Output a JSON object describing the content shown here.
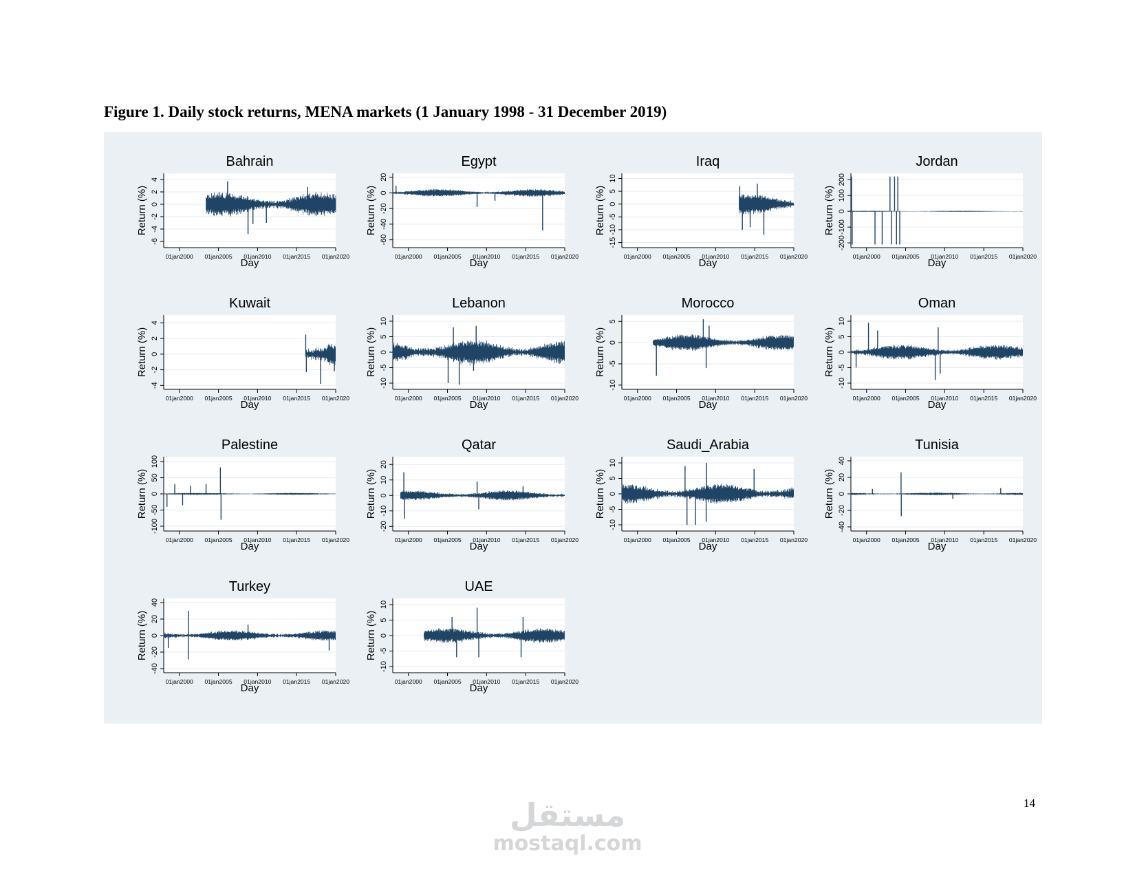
{
  "figure": {
    "title": "Figure 1. Daily stock returns, MENA markets (1 January 1998 - 31 December 2019)",
    "page_number": "14",
    "watermark": {
      "arabic": "مستقل",
      "latin": "mostaql.com"
    }
  },
  "colors": {
    "series": "#1f4466",
    "panel_bg": "#eaf0f3",
    "plot_bg": "#ffffff",
    "grid": "#e6ebee",
    "text": "#000000"
  },
  "chart_data": [
    {
      "type": "line",
      "title": "Bahrain",
      "xlabel": "Day",
      "ylabel": "Return (%)",
      "x_range": [
        "1998-01-01",
        "2019-12-31"
      ],
      "data_start": "2003-06-01",
      "x_ticks": [
        "01jan2000",
        "01jan2005",
        "01jan2010",
        "01jan2015",
        "01jan2020"
      ],
      "ylim": [
        -7,
        5
      ],
      "y_ticks": [
        4,
        2,
        0,
        -2,
        -4,
        -6
      ],
      "y_tick_labels": [
        "4",
        "2",
        "0",
        "-2",
        "-4",
        "-6"
      ],
      "typical_range": [
        -1,
        1.2
      ],
      "spikes": [
        [
          "2006-03-01",
          3.7
        ],
        [
          "2008-10-15",
          -4.8
        ],
        [
          "2009-06-01",
          -3.2
        ],
        [
          "2011-02-20",
          -3.0
        ],
        [
          "2016-06-01",
          2.8
        ]
      ]
    },
    {
      "type": "line",
      "title": "Egypt",
      "xlabel": "Day",
      "ylabel": "Return (%)",
      "x_range": [
        "1998-01-01",
        "2019-12-31"
      ],
      "data_start": "1998-01-01",
      "x_ticks": [
        "01jan2000",
        "01jan2005",
        "01jan2010",
        "01jan2015",
        "01jan2020"
      ],
      "ylim": [
        -70,
        25
      ],
      "y_ticks": [
        20,
        0,
        -20,
        -40,
        -60
      ],
      "y_tick_labels": [
        "20",
        "0",
        "-20",
        "-40",
        "-60"
      ],
      "typical_range": [
        -3,
        3
      ],
      "spikes": [
        [
          "1998-06-01",
          9
        ],
        [
          "2008-10-15",
          -18
        ],
        [
          "2011-01-28",
          -10
        ],
        [
          "2017-03-01",
          -48
        ]
      ]
    },
    {
      "type": "line",
      "title": "Iraq",
      "xlabel": "Day",
      "ylabel": "Return (%)",
      "x_range": [
        "1998-01-01",
        "2019-12-31"
      ],
      "data_start": "2013-01-01",
      "x_ticks": [
        "01jan2000",
        "01jan2005",
        "01jan2010",
        "01jan2015",
        "01jan2020"
      ],
      "ylim": [
        -17,
        12
      ],
      "y_ticks": [
        10,
        5,
        0,
        -5,
        -10,
        -15
      ],
      "y_tick_labels": [
        "10",
        "5",
        "0",
        "-5",
        "-10",
        "-15"
      ],
      "typical_range": [
        -2.5,
        2.5
      ],
      "spikes": [
        [
          "2013-02-01",
          7
        ],
        [
          "2013-06-01",
          -10
        ],
        [
          "2014-06-01",
          -9
        ],
        [
          "2015-05-01",
          8
        ],
        [
          "2016-03-01",
          -12
        ]
      ]
    },
    {
      "type": "line",
      "title": "Jordan",
      "xlabel": "Day",
      "ylabel": "Return (%)",
      "x_range": [
        "1998-01-01",
        "2019-12-31"
      ],
      "data_start": "1998-01-01",
      "x_ticks": [
        "01jan2000",
        "01jan2005",
        "01jan2010",
        "01jan2015",
        "01jan2020"
      ],
      "ylim": [
        -230,
        240
      ],
      "y_ticks": [
        200,
        100,
        0,
        -100,
        -200
      ],
      "y_tick_labels": [
        "200",
        "100",
        "0",
        "-100",
        "-200"
      ],
      "typical_range": [
        -2,
        2
      ],
      "spikes": [
        [
          "1998-02-01",
          220
        ],
        [
          "1998-03-01",
          -210
        ],
        [
          "2001-02-01",
          -210
        ],
        [
          "2002-01-01",
          -210
        ],
        [
          "2003-01-01",
          220
        ],
        [
          "2003-03-01",
          -210
        ],
        [
          "2003-08-01",
          220
        ],
        [
          "2003-11-01",
          -210
        ],
        [
          "2004-01-01",
          220
        ],
        [
          "2004-04-01",
          -210
        ]
      ]
    },
    {
      "type": "line",
      "title": "Kuwait",
      "xlabel": "Day",
      "ylabel": "Return (%)",
      "x_range": [
        "1998-01-01",
        "2019-12-31"
      ],
      "data_start": "2016-03-01",
      "x_ticks": [
        "01jan2000",
        "01jan2005",
        "01jan2010",
        "01jan2015",
        "01jan2020"
      ],
      "ylim": [
        -4.5,
        5
      ],
      "y_ticks": [
        4,
        2,
        0,
        -2,
        -4
      ],
      "y_tick_labels": [
        "4",
        "2",
        "0",
        "-2",
        "-4"
      ],
      "typical_range": [
        -1.2,
        1.3
      ],
      "spikes": [
        [
          "2016-03-01",
          2.5
        ],
        [
          "2016-04-01",
          -2.3
        ],
        [
          "2018-02-01",
          -3.8
        ],
        [
          "2019-11-01",
          -2.2
        ]
      ]
    },
    {
      "type": "line",
      "title": "Lebanon",
      "xlabel": "Day",
      "ylabel": "Return (%)",
      "x_range": [
        "1998-01-01",
        "2019-12-31"
      ],
      "data_start": "1998-01-01",
      "x_ticks": [
        "01jan2000",
        "01jan2005",
        "01jan2010",
        "01jan2015",
        "01jan2020"
      ],
      "ylim": [
        -12,
        12
      ],
      "y_ticks": [
        10,
        5,
        0,
        -5,
        -10
      ],
      "y_tick_labels": [
        "10",
        "5",
        "0",
        "-5",
        "-10"
      ],
      "typical_range": [
        -2.5,
        2.5
      ],
      "spikes": [
        [
          "2005-02-01",
          -10
        ],
        [
          "2005-10-01",
          8
        ],
        [
          "2006-07-01",
          -10.5
        ],
        [
          "2008-09-01",
          8.5
        ],
        [
          "2008-05-01",
          -6
        ]
      ]
    },
    {
      "type": "line",
      "title": "Morocco",
      "xlabel": "Day",
      "ylabel": "Return (%)",
      "x_range": [
        "1998-01-01",
        "2019-12-31"
      ],
      "data_start": "2002-01-01",
      "x_ticks": [
        "01jan2000",
        "01jan2005",
        "01jan2010",
        "01jan2015",
        "01jan2020"
      ],
      "ylim": [
        -11,
        6.5
      ],
      "y_ticks": [
        5,
        0,
        -5,
        -10
      ],
      "y_tick_labels": [
        "5",
        "0",
        "-5",
        "-10"
      ],
      "typical_range": [
        -1.2,
        1.2
      ],
      "spikes": [
        [
          "2002-06-01",
          -7.8
        ],
        [
          "2008-06-01",
          5.5
        ],
        [
          "2008-10-15",
          -6
        ],
        [
          "2009-03-01",
          4
        ]
      ]
    },
    {
      "type": "line",
      "title": "Oman",
      "xlabel": "Day",
      "ylabel": "Return (%)",
      "x_range": [
        "1998-01-01",
        "2019-12-31"
      ],
      "data_start": "1998-01-01",
      "x_ticks": [
        "01jan2000",
        "01jan2005",
        "01jan2010",
        "01jan2015",
        "01jan2020"
      ],
      "ylim": [
        -12,
        12
      ],
      "y_ticks": [
        10,
        5,
        0,
        -5,
        -10
      ],
      "y_tick_labels": [
        "10",
        "5",
        "0",
        "-5",
        "-10"
      ],
      "typical_range": [
        -1.5,
        1.5
      ],
      "spikes": [
        [
          "1998-09-01",
          -5
        ],
        [
          "2000-04-01",
          9.5
        ],
        [
          "2001-06-01",
          7
        ],
        [
          "2008-10-15",
          -9
        ],
        [
          "2009-03-01",
          8
        ],
        [
          "2009-06-01",
          -7
        ]
      ]
    },
    {
      "type": "line",
      "title": "Palestine",
      "xlabel": "Day",
      "ylabel": "Return (%)",
      "x_range": [
        "1998-01-01",
        "2019-12-31"
      ],
      "data_start": "1998-01-01",
      "x_ticks": [
        "01jan2000",
        "01jan2005",
        "01jan2010",
        "01jan2015",
        "01jan2020"
      ],
      "ylim": [
        -115,
        115
      ],
      "y_ticks": [
        100,
        50,
        0,
        -50,
        -100
      ],
      "y_tick_labels": [
        "100",
        "50",
        "0",
        "-50",
        "-100"
      ],
      "typical_range": [
        -2,
        2
      ],
      "spikes": [
        [
          "1998-06-01",
          -40
        ],
        [
          "1999-06-01",
          30
        ],
        [
          "2000-06-01",
          -35
        ],
        [
          "2001-06-01",
          25
        ],
        [
          "2003-06-01",
          30
        ],
        [
          "2005-04-01",
          82
        ],
        [
          "2005-05-01",
          -80
        ]
      ]
    },
    {
      "type": "line",
      "title": "Qatar",
      "xlabel": "Day",
      "ylabel": "Return (%)",
      "x_range": [
        "1998-01-01",
        "2019-12-31"
      ],
      "data_start": "1999-01-01",
      "x_ticks": [
        "01jan2000",
        "01jan2005",
        "01jan2010",
        "01jan2015",
        "01jan2020"
      ],
      "ylim": [
        -23,
        25
      ],
      "y_ticks": [
        20,
        10,
        0,
        -10,
        -20
      ],
      "y_tick_labels": [
        "20",
        "10",
        "0",
        "-10",
        "-20"
      ],
      "typical_range": [
        -2,
        2
      ],
      "spikes": [
        [
          "1999-06-01",
          15
        ],
        [
          "1999-07-01",
          -15
        ],
        [
          "2008-10-15",
          9
        ],
        [
          "2009-01-01",
          -9
        ],
        [
          "2014-09-01",
          6
        ]
      ]
    },
    {
      "type": "line",
      "title": "Saudi_Arabia",
      "xlabel": "Day",
      "ylabel": "Return (%)",
      "x_range": [
        "1998-01-01",
        "2019-12-31"
      ],
      "data_start": "1998-01-01",
      "x_ticks": [
        "01jan2000",
        "01jan2005",
        "01jan2010",
        "01jan2015",
        "01jan2020"
      ],
      "ylim": [
        -12,
        12
      ],
      "y_ticks": [
        10,
        5,
        0,
        -5,
        -10
      ],
      "y_tick_labels": [
        "10",
        "5",
        "0",
        "-5",
        "-10"
      ],
      "typical_range": [
        -2,
        2
      ],
      "spikes": [
        [
          "2006-02-01",
          9
        ],
        [
          "2006-05-01",
          -10
        ],
        [
          "2007-06-01",
          -10
        ],
        [
          "2008-11-01",
          10
        ],
        [
          "2008-10-15",
          -9
        ],
        [
          "2014-12-01",
          8
        ]
      ]
    },
    {
      "type": "line",
      "title": "Tunisia",
      "xlabel": "Day",
      "ylabel": "Return (%)",
      "x_range": [
        "1998-01-01",
        "2019-12-31"
      ],
      "data_start": "1998-01-01",
      "x_ticks": [
        "01jan2000",
        "01jan2005",
        "01jan2010",
        "01jan2015",
        "01jan2020"
      ],
      "ylim": [
        -45,
        45
      ],
      "y_ticks": [
        40,
        20,
        0,
        -20,
        -40
      ],
      "y_tick_labels": [
        "40",
        "20",
        "0",
        "-20",
        "-40"
      ],
      "typical_range": [
        -1,
        1
      ],
      "spikes": [
        [
          "2004-06-01",
          26
        ],
        [
          "2004-06-10",
          -27
        ],
        [
          "2000-10-01",
          6
        ],
        [
          "2011-01-14",
          -6
        ],
        [
          "2017-03-01",
          7
        ]
      ]
    },
    {
      "type": "line",
      "title": "Turkey",
      "xlabel": "Day",
      "ylabel": "Return (%)",
      "x_range": [
        "1998-01-01",
        "2019-12-31"
      ],
      "data_start": "1998-01-01",
      "x_ticks": [
        "01jan2000",
        "01jan2005",
        "01jan2010",
        "01jan2015",
        "01jan2020"
      ],
      "ylim": [
        -45,
        45
      ],
      "y_ticks": [
        40,
        20,
        0,
        -20,
        -40
      ],
      "y_tick_labels": [
        "40",
        "20",
        "0",
        "-20",
        "-40"
      ],
      "typical_range": [
        -4,
        4
      ],
      "spikes": [
        [
          "2001-02-22",
          -29
        ],
        [
          "2001-03-01",
          30
        ],
        [
          "1998-08-01",
          -15
        ],
        [
          "2008-10-15",
          13
        ],
        [
          "2019-03-01",
          -18
        ]
      ]
    },
    {
      "type": "line",
      "title": "UAE",
      "xlabel": "Day",
      "ylabel": "Return (%)",
      "x_range": [
        "1998-01-01",
        "2019-12-31"
      ],
      "data_start": "2002-01-01",
      "x_ticks": [
        "01jan2000",
        "01jan2005",
        "01jan2010",
        "01jan2015",
        "01jan2020"
      ],
      "ylim": [
        -12,
        12
      ],
      "y_ticks": [
        10,
        5,
        0,
        -5,
        -10
      ],
      "y_tick_labels": [
        "10",
        "5",
        "0",
        "-5",
        "-10"
      ],
      "typical_range": [
        -1.5,
        1.5
      ],
      "spikes": [
        [
          "2005-08-01",
          6
        ],
        [
          "2006-03-01",
          -7
        ],
        [
          "2008-10-15",
          9
        ],
        [
          "2009-01-01",
          -7
        ],
        [
          "2014-06-01",
          -7
        ],
        [
          "2014-09-01",
          6
        ]
      ]
    }
  ]
}
